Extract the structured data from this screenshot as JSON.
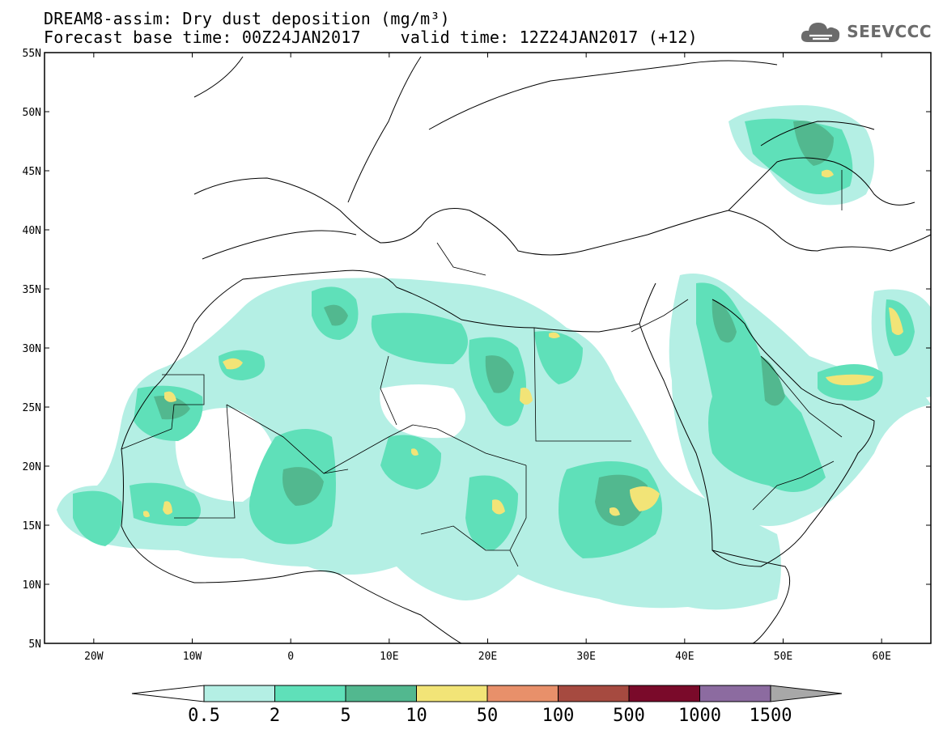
{
  "header": {
    "line1": "DREAM8-assim: Dry dust deposition (mg/m³)",
    "line2": "Forecast base time: 00Z24JAN2017    valid time: 12Z24JAN2017 (+12)"
  },
  "logo": {
    "text": "SEEVCCC",
    "icon": "cloud-icon"
  },
  "map": {
    "lon_range": [
      -25,
      65
    ],
    "lat_range": [
      5,
      55
    ],
    "lat_ticks": [
      "55N",
      "50N",
      "45N",
      "40N",
      "35N",
      "30N",
      "25N",
      "20N",
      "15N",
      "10N",
      "5N"
    ],
    "lon_ticks": [
      "20W",
      "10W",
      "0",
      "10E",
      "20E",
      "30E",
      "40E",
      "50E",
      "60E"
    ],
    "lon_tick_values": [
      -20,
      -10,
      0,
      10,
      20,
      30,
      40,
      50,
      60
    ],
    "lat_tick_values": [
      55,
      50,
      45,
      40,
      35,
      30,
      25,
      20,
      15,
      10,
      5
    ]
  },
  "colorbar": {
    "labels": [
      "0.5",
      "2",
      "5",
      "10",
      "50",
      "100",
      "500",
      "1000",
      "1500"
    ],
    "colors": [
      "#b4efe4",
      "#5fe0b9",
      "#52b88f",
      "#f2e477",
      "#e8906a",
      "#a64a40",
      "#7a0a2a",
      "#8c6ba0",
      "#a8a8a8"
    ]
  }
}
